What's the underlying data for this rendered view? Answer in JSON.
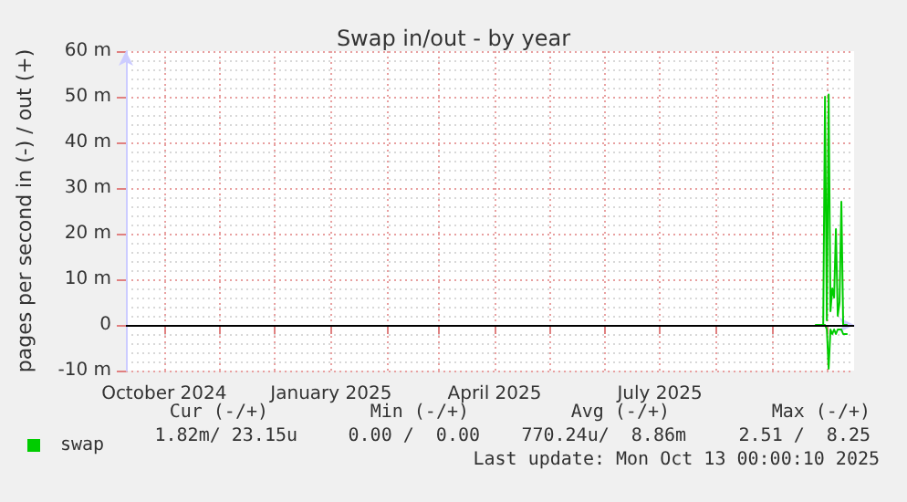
{
  "chart_data": {
    "type": "line",
    "title": "Swap in/out - by year",
    "ylabel": "pages per second in (-) / out (+)",
    "xlim": [
      "2024-09-10",
      "2025-10-16"
    ],
    "xticks": [
      {
        "value": "2024-10-01",
        "label": "October 2024"
      },
      {
        "value": "2024-11-01",
        "label": null
      },
      {
        "value": "2024-12-01",
        "label": null
      },
      {
        "value": "2025-01-01",
        "label": "January 2025"
      },
      {
        "value": "2025-02-01",
        "label": null
      },
      {
        "value": "2025-03-01",
        "label": null
      },
      {
        "value": "2025-04-01",
        "label": "April 2025"
      },
      {
        "value": "2025-05-01",
        "label": null
      },
      {
        "value": "2025-06-01",
        "label": null
      },
      {
        "value": "2025-07-01",
        "label": "July 2025"
      },
      {
        "value": "2025-08-01",
        "label": null
      },
      {
        "value": "2025-09-01",
        "label": null
      },
      {
        "value": "2025-10-01",
        "label": null
      }
    ],
    "ylim": [
      -10,
      60
    ],
    "yticks": [
      {
        "value": -10,
        "label": "-10 m"
      },
      0,
      {
        "value": 10,
        "label": "10 m"
      },
      {
        "value": 20,
        "label": "20 m"
      },
      {
        "value": 30,
        "label": "30 m"
      },
      {
        "value": 40,
        "label": "40 m"
      },
      {
        "value": 50,
        "label": "50 m"
      },
      {
        "value": 60,
        "label": "60 m"
      }
    ],
    "grid": true,
    "legend": "bottom left",
    "marker": "none",
    "series": [
      {
        "name": "swap",
        "color": "#00cc00",
        "x": [
          "2025-09-25",
          "2025-09-29",
          "2025-09-30",
          "2025-10-01",
          "2025-10-02",
          "2025-10-03",
          "2025-10-04",
          "2025-10-05",
          "2025-10-06",
          "2025-10-07",
          "2025-10-08",
          "2025-10-09",
          "2025-10-10",
          "2025-10-11",
          "2025-10-12"
        ],
        "values": [
          0,
          0,
          50,
          1,
          50.5,
          3,
          8,
          6,
          21,
          2,
          5,
          27,
          0,
          0,
          0
        ]
      },
      {
        "color": "#00cc00",
        "x": [
          "2025-09-25",
          "2025-09-30",
          "2025-10-01",
          "2025-10-02",
          "2025-10-03",
          "2025-10-04",
          "2025-10-05",
          "2025-10-06",
          "2025-10-07",
          "2025-10-08",
          "2025-10-09",
          "2025-10-10",
          "2025-10-11",
          "2025-10-12"
        ],
        "values": [
          0,
          0,
          -1,
          -9.6,
          -1,
          -2,
          -1,
          -2,
          -1,
          -1,
          -1,
          -2,
          -2,
          -2
        ]
      }
    ],
    "ref_lines": [
      {
        "axis": "y",
        "value": 0,
        "label": null,
        "color": "#000000"
      }
    ],
    "annotations": [
      "Cur (-/+)",
      "Min (-/+)",
      "Avg (-/+)",
      "Max (-/+)",
      "1.82m/ 23.15u",
      "0.00 /  0.00",
      "770.24u/  8.86m",
      "2.51 /  8.25",
      "Last update: Mon Oct 13 00:00:10 2025"
    ]
  }
}
